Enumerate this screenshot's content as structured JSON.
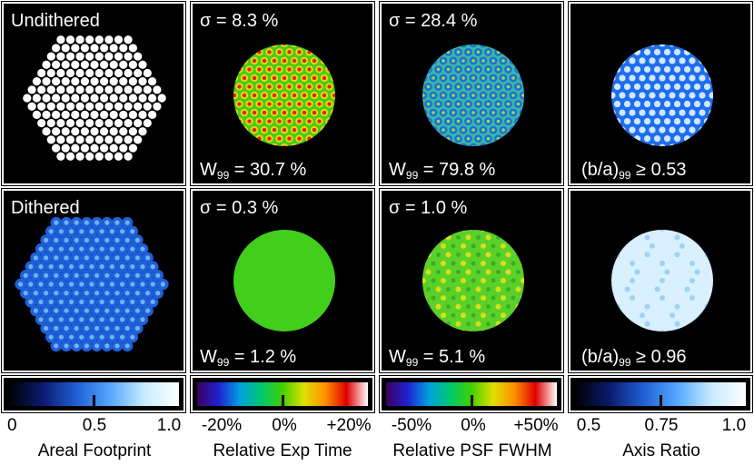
{
  "rows": {
    "undithered": {
      "label": "Undithered",
      "exp": {
        "sigma": "σ = 8.3 %",
        "w_pre": "W",
        "w_sub": "99",
        "w_post": " = 30.7 %"
      },
      "psf": {
        "sigma": "σ = 28.4 %",
        "w_pre": "W",
        "w_sub": "99",
        "w_post": " = 79.8 %"
      },
      "axis": {
        "pre": "(b/a)",
        "sub": "99",
        "post": " ≥ 0.53"
      }
    },
    "dithered": {
      "label": "Dithered",
      "exp": {
        "sigma": "σ = 0.3 %",
        "w_pre": "W",
        "w_sub": "99",
        "w_post": " = 1.2 %"
      },
      "psf": {
        "sigma": "σ = 1.0 %",
        "w_pre": "W",
        "w_sub": "99",
        "w_post": " = 5.1 %"
      },
      "axis": {
        "pre": "(b/a)",
        "sub": "99",
        "post": " ≥ 0.96"
      }
    }
  },
  "colorbars": [
    {
      "caption": "Areal Footprint",
      "ticks": [
        "0",
        "0.5",
        "1.0"
      ],
      "stops": [
        "#000000",
        "#0a1a6e",
        "#1f5fd6",
        "#55a8ff",
        "#c8ecff",
        "#ffffff"
      ]
    },
    {
      "caption": "Relative Exp Time",
      "ticks": [
        "-20%",
        "0%",
        "+20%"
      ],
      "stops": [
        "#3b0060",
        "#2020d0",
        "#00a0e0",
        "#00c870",
        "#40d000",
        "#e0e000",
        "#ff9000",
        "#e00000",
        "#ffffff"
      ]
    },
    {
      "caption": "Relative PSF FWHM",
      "ticks": [
        "-50%",
        "0%",
        "+50%"
      ],
      "stops": [
        "#3b0060",
        "#2020d0",
        "#00a0e0",
        "#00c870",
        "#40d000",
        "#e0e000",
        "#ff9000",
        "#e00000",
        "#ffffff"
      ]
    },
    {
      "caption": "Axis Ratio",
      "ticks": [
        "0.5",
        "0.75",
        "1.0"
      ],
      "stops": [
        "#000000",
        "#0a1a6e",
        "#1f5fd6",
        "#55a8ff",
        "#c8ecff",
        "#ffffff"
      ]
    }
  ],
  "colors": {
    "panel_bg": "#000000",
    "border": "#ffffff",
    "exp_green": "#3ecf1a",
    "axis_blue": "#1e6cf0"
  }
}
